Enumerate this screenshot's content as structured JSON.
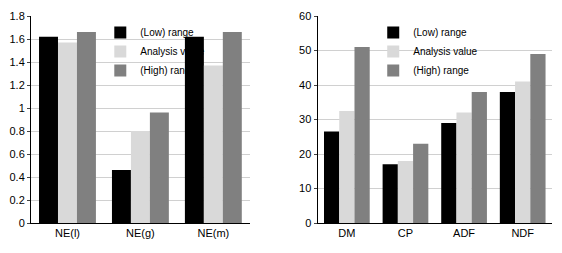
{
  "chart_data": [
    {
      "type": "bar",
      "categories": [
        "NE(l)",
        "NE(g)",
        "NE(m)"
      ],
      "series": [
        {
          "name": "(Low) range",
          "color": "#000000",
          "values": [
            1.62,
            0.46,
            1.62
          ]
        },
        {
          "name": "Analysis value",
          "color": "#d9d9d9",
          "values": [
            1.57,
            0.8,
            1.37
          ]
        },
        {
          "name": "(High) range",
          "color": "#808080",
          "values": [
            1.66,
            0.96,
            1.66
          ]
        }
      ],
      "ylim": [
        0,
        1.8
      ],
      "yticks": [
        0,
        0.2,
        0.4,
        0.6,
        0.8,
        1,
        1.2,
        1.4,
        1.6,
        1.8
      ],
      "grid": true,
      "legend": "top-left"
    },
    {
      "type": "bar",
      "categories": [
        "DM",
        "CP",
        "ADF",
        "NDF"
      ],
      "series": [
        {
          "name": "(Low) range",
          "color": "#000000",
          "values": [
            26.5,
            17,
            29,
            38
          ]
        },
        {
          "name": "Analysis value",
          "color": "#d9d9d9",
          "values": [
            32.5,
            18,
            32,
            41
          ]
        },
        {
          "name": "(High) range",
          "color": "#808080",
          "values": [
            51,
            23,
            38,
            49
          ]
        }
      ],
      "ylim": [
        0,
        60
      ],
      "yticks": [
        0,
        10,
        20,
        30,
        40,
        50,
        60
      ],
      "grid": true,
      "legend": "top-left"
    }
  ]
}
